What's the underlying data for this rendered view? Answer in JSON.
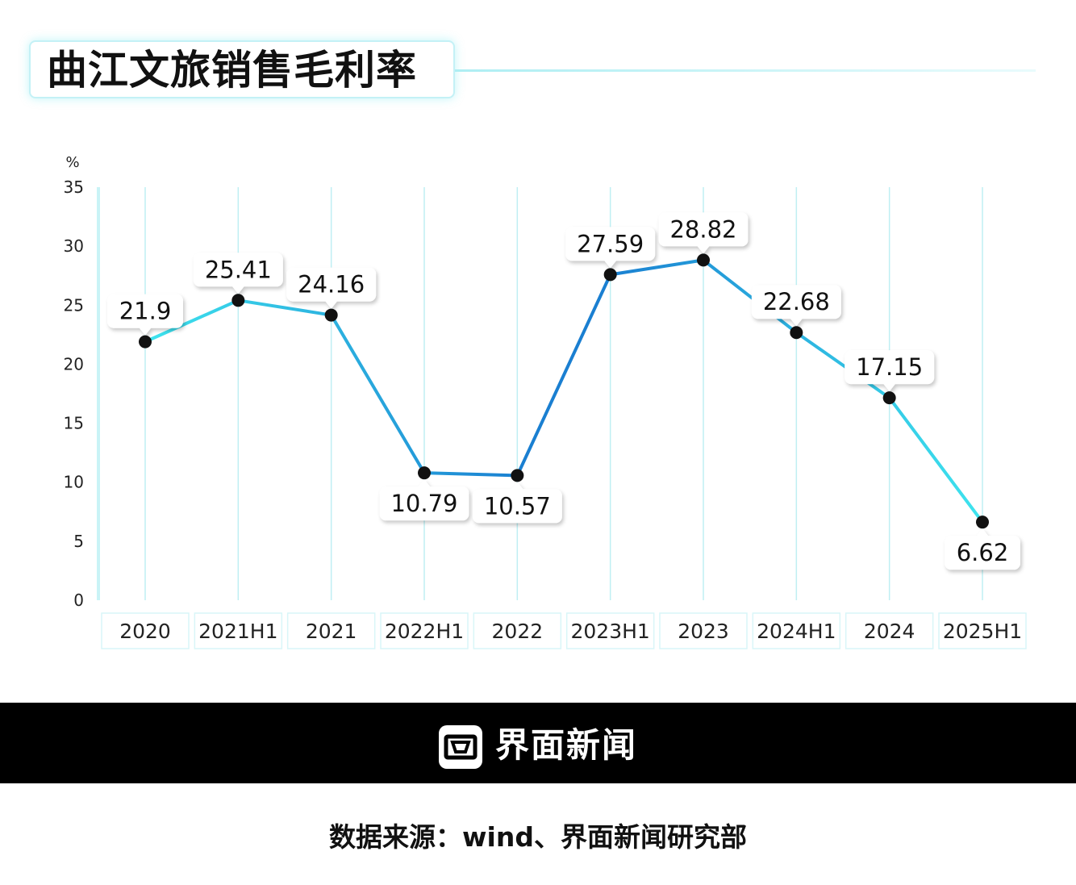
{
  "title": "曲江文旅销售毛利率",
  "chart_data": {
    "type": "line",
    "y_unit_label": "%",
    "categories": [
      "2020",
      "2021H1",
      "2021",
      "2022H1",
      "2022",
      "2023H1",
      "2023",
      "2024H1",
      "2024",
      "2025H1"
    ],
    "values": [
      21.9,
      25.41,
      24.16,
      10.79,
      10.57,
      27.59,
      28.82,
      22.68,
      17.15,
      6.62
    ],
    "value_labels": [
      "21.9",
      "25.41",
      "24.16",
      "10.79",
      "10.57",
      "27.59",
      "28.82",
      "22.68",
      "17.15",
      "6.62"
    ],
    "label_position": [
      "above",
      "above",
      "above",
      "below",
      "below",
      "above",
      "above",
      "above",
      "above",
      "below"
    ],
    "y_ticks": [
      0,
      5,
      10,
      15,
      20,
      25,
      30,
      35
    ],
    "ylim": [
      0,
      35
    ],
    "grid": "vertical",
    "colors": {
      "line_start": "#3ee4ee",
      "line_mid": "#1a7fd1",
      "point": "#111111",
      "grid": "#bfeff3",
      "axis": "#c9f3f6"
    }
  },
  "footer": {
    "brand": "界面新闻",
    "logo_icon": "jiemian-logo-icon"
  },
  "source": "数据来源：wind、界面新闻研究部"
}
